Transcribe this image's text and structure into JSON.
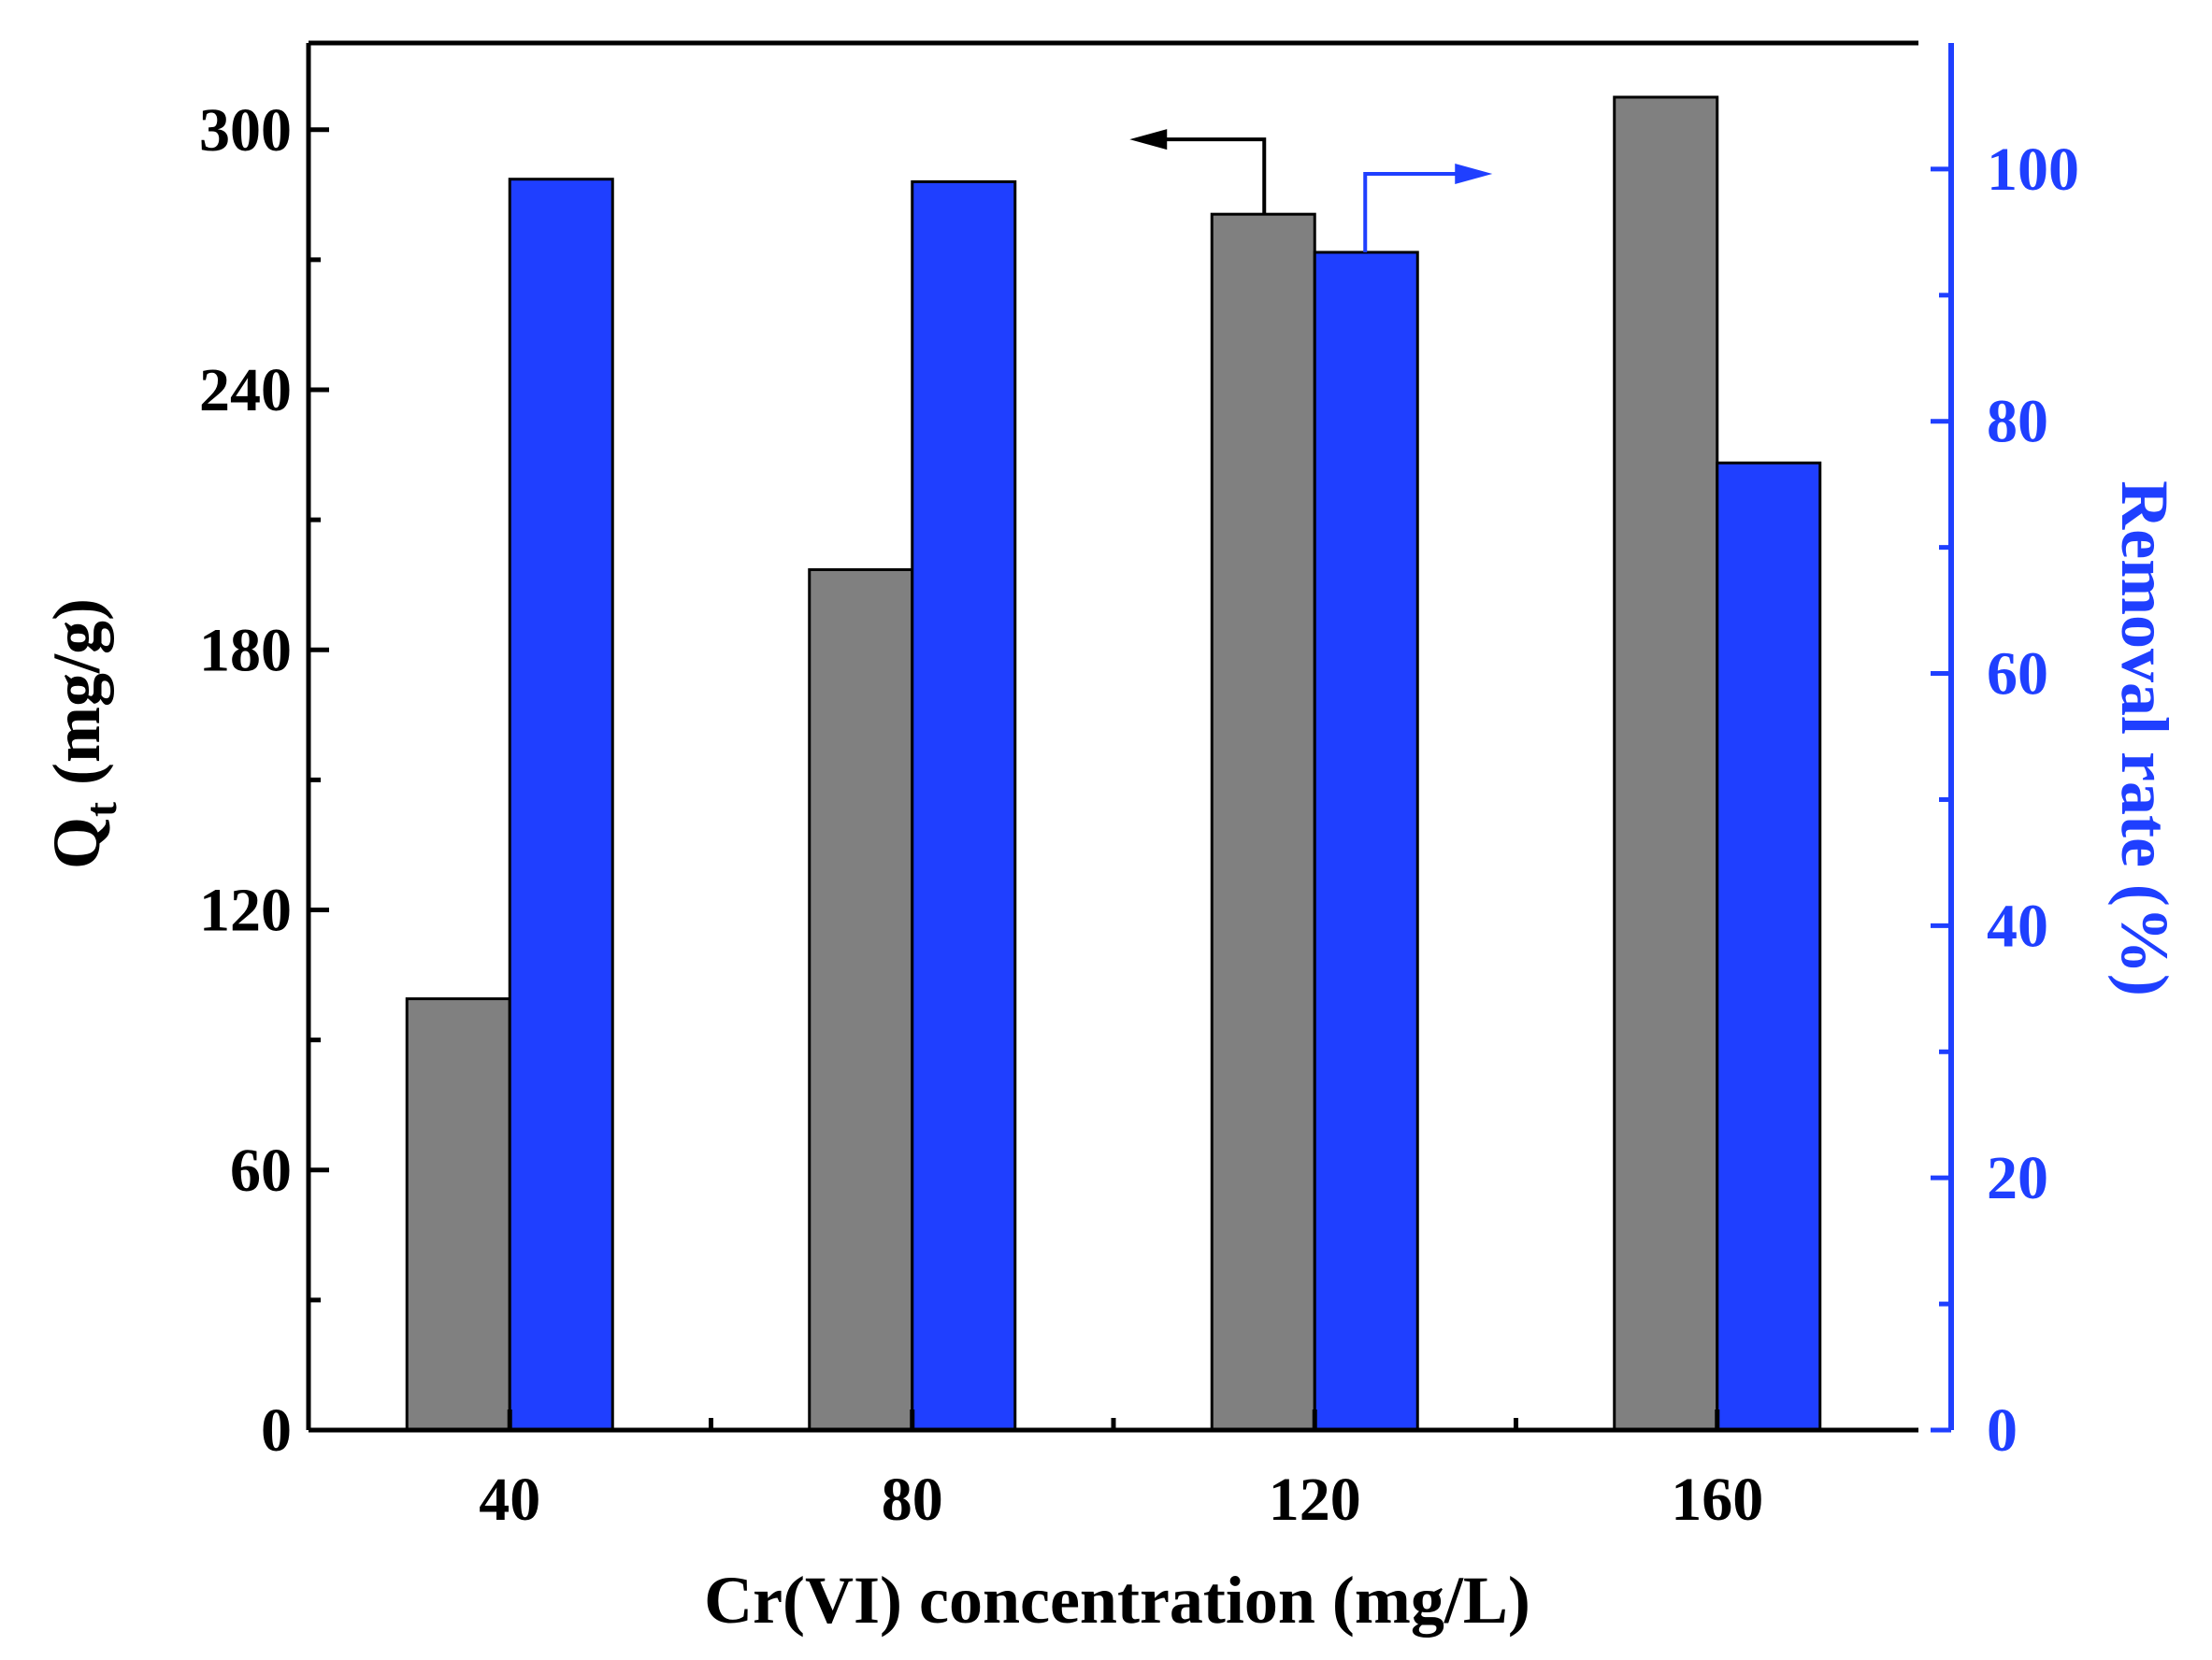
{
  "chart_data": {
    "type": "bar",
    "xlabel": "Cr(VI) concentration (mg/L)",
    "ylabel": {
      "main": "Q",
      "sub": "t",
      "suffix": " (mg/g)"
    },
    "y2label": "Removal rate (%)",
    "categories": [
      "40",
      "80",
      "120",
      "160"
    ],
    "x": [
      40,
      80,
      120,
      160
    ],
    "xlim": [
      20,
      180
    ],
    "ylim": [
      0,
      320
    ],
    "y2lim": [
      0,
      110
    ],
    "yticks": [
      0,
      60,
      120,
      180,
      240,
      300
    ],
    "yticks_minor": [
      30,
      90,
      150,
      210,
      270
    ],
    "y2ticks": [
      0,
      20,
      40,
      60,
      80,
      100
    ],
    "y2ticks_minor": [
      10,
      30,
      50,
      70,
      90
    ],
    "xticks_minor": [
      60,
      100,
      140
    ],
    "series": [
      {
        "name": "Qt",
        "axis": "left",
        "color": "#808080",
        "values": [
          99.5,
          198.5,
          280.5,
          307.5
        ]
      },
      {
        "name": "Removal rate",
        "axis": "right",
        "color": "#1f3fff",
        "values": [
          99.2,
          99.0,
          93.4,
          76.7
        ]
      }
    ],
    "annotations": [
      {
        "points_to": "left-axis",
        "series": "Qt"
      },
      {
        "points_to": "right-axis",
        "series": "Removal rate"
      }
    ],
    "colors": {
      "axis": "#000000",
      "right_axis": "#1f3fff"
    }
  }
}
